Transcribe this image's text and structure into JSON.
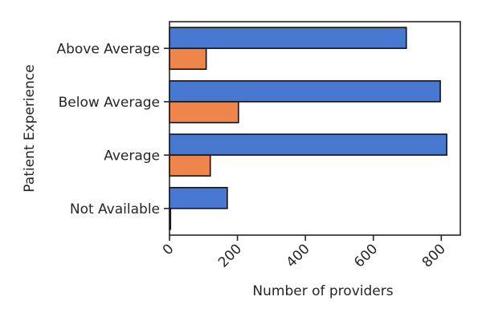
{
  "chart_data": {
    "type": "bar",
    "orientation": "horizontal",
    "categories": [
      "Above Average",
      "Below Average",
      "Average",
      "Not Available"
    ],
    "series": [
      {
        "values": [
          697,
          797,
          816,
          170
        ],
        "color": "#4878d0"
      },
      {
        "values": [
          108,
          203,
          120,
          3
        ],
        "color": "#ee854a"
      }
    ],
    "xlabel": "Number of providers",
    "ylabel": "Patient Experience",
    "xlim": [
      0,
      856
    ],
    "xticks": [
      0,
      200,
      400,
      600,
      800
    ],
    "grid": false,
    "legend": "none"
  }
}
